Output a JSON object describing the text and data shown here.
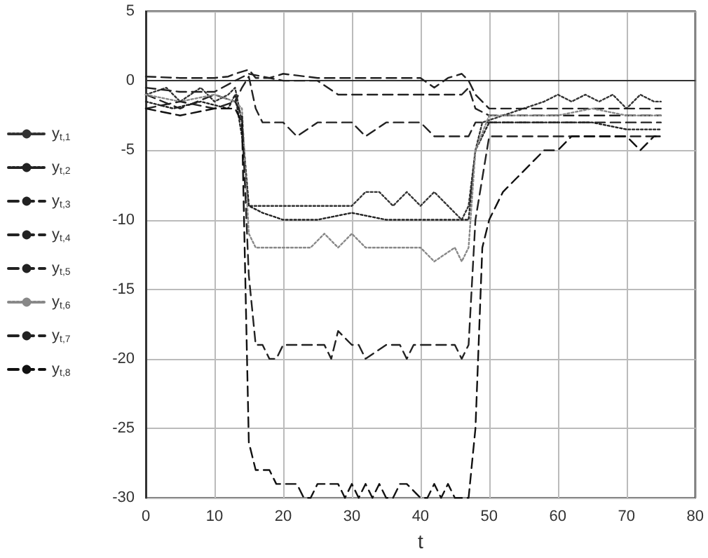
{
  "chart_data": {
    "type": "line",
    "xlabel": "t",
    "xlim": [
      0,
      80
    ],
    "xticks": [
      0,
      10,
      20,
      30,
      40,
      50,
      60,
      70,
      80
    ],
    "ylim": [
      -30,
      5
    ],
    "yticks": [
      -30,
      -25,
      -20,
      -15,
      -10,
      -5,
      0,
      5
    ],
    "grid": true,
    "legend": "left",
    "marker": "none",
    "series": [
      {
        "name": "y$_{t,1}$",
        "color": "#333333",
        "line_style": "dotted",
        "x": [
          0,
          3,
          5,
          8,
          10,
          12,
          13,
          14,
          15,
          16,
          17,
          20,
          22,
          24,
          27,
          30,
          32,
          34,
          36,
          38,
          40,
          42,
          44,
          46,
          47,
          48,
          49,
          52,
          55,
          58,
          60,
          62,
          64,
          66,
          68,
          70,
          72,
          74,
          75
        ],
        "values": [
          -1,
          -0.5,
          -1.5,
          -0.5,
          -1.5,
          -1,
          -0.5,
          -3,
          -9,
          -9,
          -9,
          -9,
          -9,
          -9,
          -9,
          -9,
          -8,
          -8,
          -9,
          -8,
          -9,
          -8,
          -9,
          -10,
          -9,
          -5,
          -3,
          -2.5,
          -2,
          -1.5,
          -1,
          -1.5,
          -1,
          -1.5,
          -1,
          -2,
          -1,
          -1.5,
          -1.5
        ]
      },
      {
        "name": "y$_{t,2}$",
        "color": "#222222",
        "line_style": "dotted",
        "x": [
          0,
          4,
          8,
          12,
          13,
          14,
          15,
          17,
          20,
          25,
          30,
          35,
          40,
          43,
          45,
          46,
          47,
          48,
          50,
          55,
          60,
          65,
          70,
          75
        ],
        "values": [
          -1.5,
          -2,
          -1.5,
          -2,
          -1,
          -4,
          -9,
          -9.5,
          -10,
          -10,
          -9.5,
          -10,
          -10,
          -10,
          -10,
          -10,
          -10,
          -5,
          -3,
          -3,
          -3,
          -3,
          -3.5,
          -3.5
        ]
      },
      {
        "name": "y$_{t,3}$",
        "color": "#222222",
        "line_style": "dashed",
        "x": [
          0,
          5,
          10,
          12,
          13,
          15,
          16,
          18,
          20,
          25,
          30,
          35,
          40,
          42,
          44,
          46,
          47,
          48,
          50,
          55,
          60,
          65,
          70,
          75
        ],
        "values": [
          0.3,
          0.2,
          0.2,
          0.3,
          0.5,
          0.8,
          0.2,
          0.2,
          0.5,
          0.2,
          0.2,
          0.2,
          0.2,
          -0.5,
          0.2,
          0.5,
          0,
          -1,
          -2,
          -2,
          -2,
          -2,
          -2,
          -2
        ]
      },
      {
        "name": "y$_{t,4}$",
        "color": "#222222",
        "line_style": "dashed",
        "x": [
          0,
          5,
          10,
          13,
          15,
          20,
          25,
          28,
          35,
          40,
          44,
          46,
          47,
          48,
          50,
          55,
          60,
          65,
          70,
          75
        ],
        "values": [
          -0.5,
          -0.8,
          -0.8,
          0,
          0.5,
          0,
          0,
          -1,
          -1,
          -1,
          -1,
          -1,
          -0.5,
          -2,
          -2.5,
          -2.5,
          -2.5,
          -2.5,
          -2.5,
          -2.5
        ]
      },
      {
        "name": "y$_{t,5}$",
        "color": "#222222",
        "line_style": "dashed",
        "x": [
          0,
          5,
          10,
          13,
          14,
          15,
          16,
          17,
          20,
          22,
          25,
          27,
          30,
          32,
          35,
          37,
          40,
          42,
          44,
          46,
          47,
          48,
          50,
          55,
          60,
          65,
          70,
          75
        ],
        "values": [
          -1,
          -2,
          -1,
          -1.5,
          -0.5,
          0.3,
          -2,
          -3,
          -3,
          -4,
          -3,
          -3,
          -3,
          -4,
          -3,
          -3,
          -3,
          -4,
          -4,
          -4,
          -4,
          -3,
          -3,
          -3,
          -3,
          -3,
          -3,
          -3
        ]
      },
      {
        "name": "y$_{t,6}$",
        "color": "#888888",
        "line_style": "dotted",
        "x": [
          0,
          5,
          10,
          13,
          14,
          15,
          16,
          20,
          24,
          26,
          28,
          30,
          32,
          35,
          38,
          40,
          42,
          45,
          46,
          47,
          48,
          50,
          55,
          60,
          65,
          70,
          75
        ],
        "values": [
          -1,
          -1.5,
          -1,
          -1.5,
          -2,
          -11,
          -12,
          -12,
          -12,
          -11,
          -12,
          -11,
          -12,
          -12,
          -12,
          -12,
          -13,
          -12,
          -13,
          -12,
          -5,
          -2.5,
          -2.5,
          -2.5,
          -2,
          -2.5,
          -2.5
        ]
      },
      {
        "name": "y$_{t,7}$",
        "color": "#222222",
        "line_style": "dashed",
        "x": [
          0,
          5,
          10,
          13,
          14,
          15,
          16,
          17,
          18,
          19,
          20,
          22,
          25,
          26,
          27,
          28,
          30,
          31,
          32,
          35,
          37,
          38,
          39,
          40,
          45,
          46,
          47,
          48,
          50,
          55,
          60,
          65,
          70,
          75
        ],
        "values": [
          -2,
          -1.5,
          -2,
          -1.5,
          -2.5,
          -14,
          -19,
          -19,
          -20,
          -20,
          -19,
          -19,
          -19,
          -19,
          -20,
          -18,
          -19,
          -19,
          -20,
          -19,
          -19,
          -20,
          -19,
          -19,
          -19,
          -20,
          -19,
          -10,
          -4,
          -4,
          -4,
          -4,
          -4,
          -4
        ]
      },
      {
        "name": "y$_{t,8}$",
        "color": "#111111",
        "line_style": "dashed",
        "x": [
          0,
          5,
          10,
          13,
          14,
          15,
          16,
          18,
          19,
          20,
          22,
          23,
          24,
          25,
          26,
          28,
          29,
          30,
          31,
          32,
          33,
          34,
          35,
          36,
          37,
          38,
          40,
          41,
          42,
          43,
          44,
          45,
          46,
          47,
          48,
          49,
          50,
          52,
          54,
          56,
          58,
          60,
          62,
          64,
          66,
          68,
          70,
          72,
          74,
          75
        ],
        "values": [
          -2,
          -2.5,
          -2,
          -2,
          -3,
          -26,
          -28,
          -28,
          -29,
          -29,
          -29,
          -30,
          -30,
          -29,
          -29,
          -29,
          -30,
          -29,
          -30,
          -29,
          -30,
          -29,
          -30,
          -30,
          -29,
          -29,
          -30,
          -30,
          -29,
          -30,
          -29,
          -30,
          -30,
          -30,
          -25,
          -12,
          -10,
          -8,
          -7,
          -6,
          -5,
          -5,
          -4,
          -4,
          -4,
          -4,
          -4,
          -5,
          -4,
          -4
        ]
      }
    ]
  }
}
